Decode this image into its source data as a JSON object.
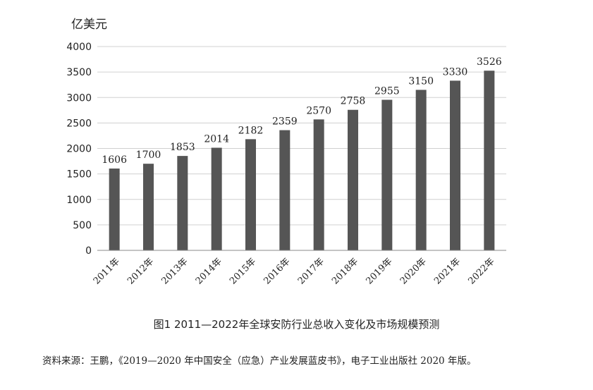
{
  "chart_data": {
    "type": "bar",
    "title": "",
    "ylabel": "亿美元",
    "xlabel": "",
    "ylim": [
      0,
      4000
    ],
    "yticks": [
      0,
      500,
      1000,
      1500,
      2000,
      2500,
      3000,
      3500,
      4000
    ],
    "grid": true,
    "categories": [
      "2011年",
      "2012年",
      "2013年",
      "2014年",
      "2015年",
      "2016年",
      "2017年",
      "2018年",
      "2019年",
      "2020年",
      "2021年",
      "2022年"
    ],
    "values": [
      1606,
      1700,
      1853,
      2014,
      2182,
      2359,
      2570,
      2758,
      2955,
      3150,
      3330,
      3526
    ],
    "bar_color": "#555555"
  },
  "caption": "图1  2011—2022年全球安防行业总收入变化及市场规模预测",
  "source": "资料来源：王鹏，《2019—2020 年中国安全（应急）产业发展蓝皮书》，电子工业出版社 2020 年版。"
}
